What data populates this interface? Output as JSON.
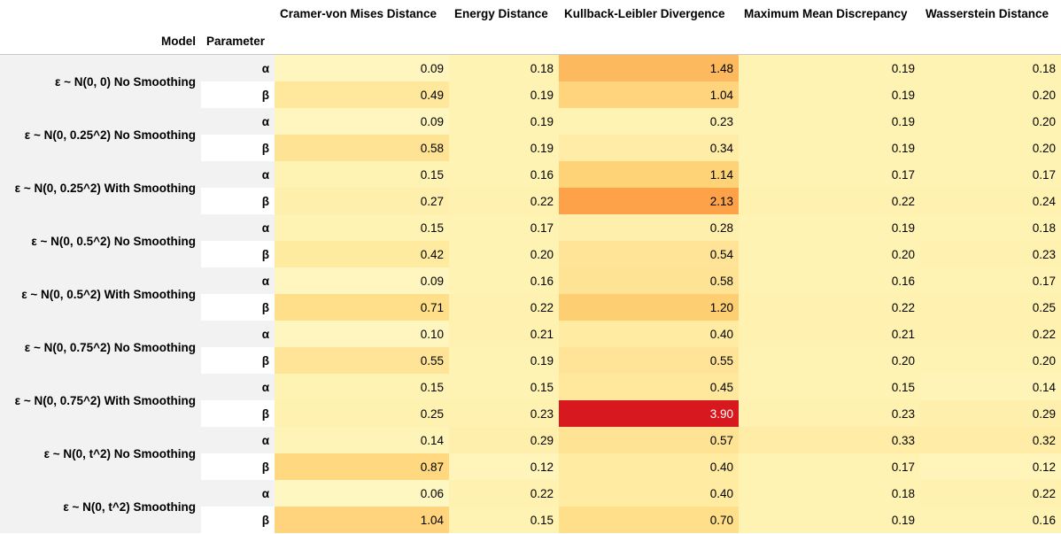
{
  "header": {
    "model_label": "Model",
    "parameter_label": "Parameter",
    "columns": [
      "Cramer-von Mises Distance",
      "Energy Distance",
      "Kullback-Leibler Divergence",
      "Maximum Mean Discrepancy",
      "Wasserstein Distance"
    ]
  },
  "rows": [
    {
      "model": "ε ~ N(0, 0) No Smoothing",
      "params": [
        {
          "param": "α",
          "values": [
            "0.09",
            "0.18",
            "1.48",
            "0.19",
            "0.18"
          ],
          "colors": [
            "#fff6bf",
            "#fff3b4",
            "#fdb95d",
            "#fff3b4",
            "#fff3b4"
          ]
        },
        {
          "param": "β",
          "values": [
            "0.49",
            "0.19",
            "1.04",
            "0.19",
            "0.20"
          ],
          "colors": [
            "#ffe79b",
            "#fff3b4",
            "#ffd47c",
            "#fff3b4",
            "#fff3b4"
          ]
        }
      ]
    },
    {
      "model": "ε ~ N(0, 0.25^2) No Smoothing",
      "params": [
        {
          "param": "α",
          "values": [
            "0.09",
            "0.19",
            "0.23",
            "0.19",
            "0.20"
          ],
          "colors": [
            "#fff6bf",
            "#fff3b4",
            "#fff3b4",
            "#fff3b4",
            "#fff3b4"
          ]
        },
        {
          "param": "β",
          "values": [
            "0.58",
            "0.19",
            "0.34",
            "0.19",
            "0.20"
          ],
          "colors": [
            "#ffe394",
            "#fff3b4",
            "#ffeda7",
            "#fff3b4",
            "#fff3b4"
          ]
        }
      ]
    },
    {
      "model": "ε ~ N(0, 0.25^2) With Smoothing",
      "params": [
        {
          "param": "α",
          "values": [
            "0.15",
            "0.16",
            "1.14",
            "0.17",
            "0.17"
          ],
          "colors": [
            "#fff3b4",
            "#fff3b4",
            "#fed277",
            "#fff3b4",
            "#fff3b4"
          ]
        },
        {
          "param": "β",
          "values": [
            "0.27",
            "0.22",
            "2.13",
            "0.22",
            "0.24"
          ],
          "colors": [
            "#ffefac",
            "#fff1b0",
            "#fda248",
            "#fff1b0",
            "#fff1b0"
          ]
        }
      ]
    },
    {
      "model": "ε ~ N(0, 0.5^2) No Smoothing",
      "params": [
        {
          "param": "α",
          "values": [
            "0.15",
            "0.17",
            "0.28",
            "0.19",
            "0.18"
          ],
          "colors": [
            "#fff3b4",
            "#fff3b4",
            "#ffefac",
            "#fff3b4",
            "#fff3b4"
          ]
        },
        {
          "param": "β",
          "values": [
            "0.42",
            "0.20",
            "0.54",
            "0.20",
            "0.23"
          ],
          "colors": [
            "#ffeb9f",
            "#fff3b4",
            "#ffe497",
            "#fff3b4",
            "#fff1b0"
          ]
        }
      ]
    },
    {
      "model": "ε ~ N(0, 0.5^2) With Smoothing",
      "params": [
        {
          "param": "α",
          "values": [
            "0.09",
            "0.16",
            "0.58",
            "0.16",
            "0.17"
          ],
          "colors": [
            "#fff6bf",
            "#fff3b4",
            "#ffe394",
            "#fff3b4",
            "#fff3b4"
          ]
        },
        {
          "param": "β",
          "values": [
            "0.71",
            "0.22",
            "1.20",
            "0.22",
            "0.25"
          ],
          "colors": [
            "#ffdf8a",
            "#fff1b0",
            "#fece72",
            "#fff1b0",
            "#fff1b0"
          ]
        }
      ]
    },
    {
      "model": "ε ~ N(0, 0.75^2) No Smoothing",
      "params": [
        {
          "param": "α",
          "values": [
            "0.10",
            "0.21",
            "0.40",
            "0.21",
            "0.22"
          ],
          "colors": [
            "#fff6bf",
            "#fff1b0",
            "#ffeba2",
            "#fff1b0",
            "#fff1b0"
          ]
        },
        {
          "param": "β",
          "values": [
            "0.55",
            "0.19",
            "0.55",
            "0.20",
            "0.20"
          ],
          "colors": [
            "#ffe497",
            "#fff3b4",
            "#ffe497",
            "#fff3b4",
            "#fff3b4"
          ]
        }
      ]
    },
    {
      "model": "ε ~ N(0, 0.75^2) With Smoothing",
      "params": [
        {
          "param": "α",
          "values": [
            "0.15",
            "0.15",
            "0.45",
            "0.15",
            "0.14"
          ],
          "colors": [
            "#fff3b4",
            "#fff3b4",
            "#ffe89c",
            "#fff3b4",
            "#fff4b8"
          ]
        },
        {
          "param": "β",
          "values": [
            "0.25",
            "0.23",
            "3.90",
            "0.23",
            "0.29"
          ],
          "colors": [
            "#fff1b0",
            "#fff1b0",
            "#d7191f",
            "#fff1b0",
            "#ffefac"
          ]
        }
      ]
    },
    {
      "model": "ε ~ N(0, t^2) No Smoothing",
      "params": [
        {
          "param": "α",
          "values": [
            "0.14",
            "0.29",
            "0.57",
            "0.33",
            "0.32"
          ],
          "colors": [
            "#fff4b8",
            "#ffefac",
            "#ffe394",
            "#ffeda7",
            "#ffeda7"
          ]
        },
        {
          "param": "β",
          "values": [
            "0.87",
            "0.12",
            "0.40",
            "0.17",
            "0.12"
          ],
          "colors": [
            "#ffd87f",
            "#fff5bb",
            "#ffeba2",
            "#fff3b4",
            "#fff5bb"
          ]
        }
      ]
    },
    {
      "model": "ε ~ N(0, t^2) Smoothing",
      "params": [
        {
          "param": "α",
          "values": [
            "0.06",
            "0.22",
            "0.40",
            "0.18",
            "0.22"
          ],
          "colors": [
            "#fff7c2",
            "#fff1b0",
            "#ffeba2",
            "#fff3b4",
            "#fff1b0"
          ]
        },
        {
          "param": "β",
          "values": [
            "1.04",
            "0.15",
            "0.70",
            "0.19",
            "0.16"
          ],
          "colors": [
            "#ffd47c",
            "#fff3b4",
            "#ffdf8a",
            "#fff3b4",
            "#fff3b4"
          ]
        }
      ]
    }
  ],
  "dark_text_threshold": 3.0
}
